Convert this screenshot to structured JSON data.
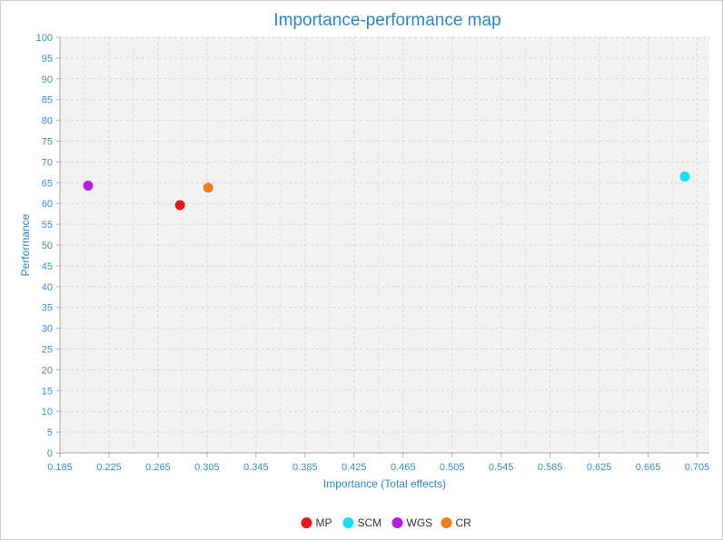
{
  "chart_data": {
    "type": "scatter",
    "title": "Importance-performance map",
    "xlabel": "Importance (Total effects)",
    "ylabel": "Performance",
    "xlim": [
      0.185,
      0.715
    ],
    "ylim": [
      0,
      100
    ],
    "x_ticks": [
      "0.185",
      "0.225",
      "0.265",
      "0.305",
      "0.345",
      "0.385",
      "0.425",
      "0.465",
      "0.505",
      "0.545",
      "0.585",
      "0.625",
      "0.665",
      "0.705"
    ],
    "y_ticks": [
      "0",
      "5",
      "10",
      "15",
      "20",
      "25",
      "30",
      "35",
      "40",
      "45",
      "50",
      "55",
      "60",
      "65",
      "70",
      "75",
      "80",
      "85",
      "90",
      "95",
      "100"
    ],
    "grid": true,
    "legend_position": "bottom-center",
    "series": [
      {
        "name": "MP",
        "color": "#e8141b",
        "points": [
          {
            "x": 0.283,
            "y": 59.6
          }
        ]
      },
      {
        "name": "SCM",
        "color": "#12dff0",
        "points": [
          {
            "x": 0.695,
            "y": 66.5
          }
        ]
      },
      {
        "name": "WGS",
        "color": "#b21ee6",
        "points": [
          {
            "x": 0.208,
            "y": 64.3
          }
        ]
      },
      {
        "name": "CR",
        "color": "#f07d15",
        "points": [
          {
            "x": 0.306,
            "y": 63.8
          }
        ]
      }
    ]
  }
}
